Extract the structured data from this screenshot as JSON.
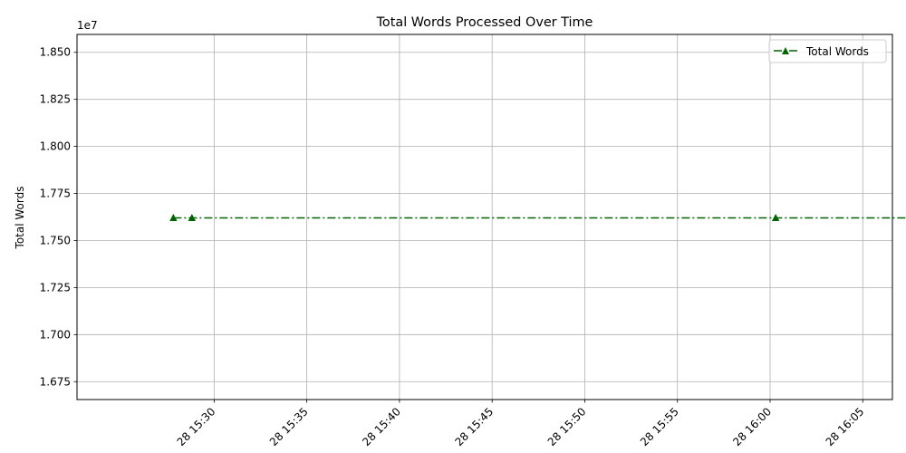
{
  "chart_data": {
    "type": "line",
    "title": "Total Words Processed Over Time",
    "xlabel": "",
    "ylabel": "Total Words",
    "y_offset_label": "1e7",
    "y_scale": 10000000,
    "grid": true,
    "legend_position": "top-right",
    "x_unit": "minutes after 15:00",
    "xlim": [
      22.6,
      66.6
    ],
    "ylim": [
      1.6655,
      1.8595
    ],
    "x_ticks": [
      {
        "value": 30,
        "label": "28 15:30"
      },
      {
        "value": 35,
        "label": "28 15:35"
      },
      {
        "value": 40,
        "label": "28 15:40"
      },
      {
        "value": 45,
        "label": "28 15:45"
      },
      {
        "value": 50,
        "label": "28 15:50"
      },
      {
        "value": 55,
        "label": "28 15:55"
      },
      {
        "value": 60,
        "label": "28 16:00"
      },
      {
        "value": 65,
        "label": "28 16:05"
      }
    ],
    "y_ticks": [
      {
        "value": 1.675,
        "label": "1.675"
      },
      {
        "value": 1.7,
        "label": "1.700"
      },
      {
        "value": 1.725,
        "label": "1.725"
      },
      {
        "value": 1.75,
        "label": "1.750"
      },
      {
        "value": 1.775,
        "label": "1.775"
      },
      {
        "value": 1.8,
        "label": "1.800"
      },
      {
        "value": 1.825,
        "label": "1.825"
      },
      {
        "value": 1.85,
        "label": "1.850"
      }
    ],
    "series": [
      {
        "name": "Total Words",
        "color": "#006400",
        "marker": "triangle-up",
        "line_style": "dash-dot",
        "x": [
          27.8,
          28.8,
          60.3,
          67.8
        ],
        "y": [
          1.762,
          1.762,
          1.762,
          1.762
        ]
      }
    ]
  }
}
